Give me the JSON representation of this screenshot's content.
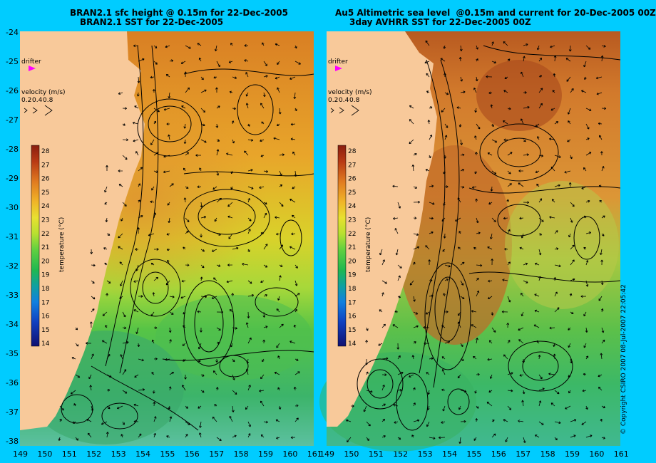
{
  "left_panel": {
    "title_line1": "BRAN2.1 sfc height @ 0.15m for 22-Dec-2005",
    "title_line2": "BRAN2.1 SST for 22-Dec-2005",
    "drifter_label": "drifter",
    "velocity_label": "velocity (m/s)",
    "velocity_scale": [
      "0.2",
      "0.4",
      "0.8"
    ],
    "colorbar_title": "temperature (°C)"
  },
  "right_panel": {
    "title_line1": "Au5 Altimetric sea level  @0.15m and current for 20-Dec-2005 00Z",
    "title_line2": "3day AVHRR SST for 22-Dec-2005 00Z",
    "drifter_label": "drifter",
    "velocity_label": "velocity (m/s)",
    "velocity_scale": [
      "0.2",
      "0.4",
      "0.8"
    ],
    "colorbar_title": "temperature (°C)"
  },
  "colorbar_ticks": [
    "28",
    "27",
    "26",
    "25",
    "24",
    "23",
    "22",
    "21",
    "20",
    "19",
    "18",
    "17",
    "16",
    "15",
    "14"
  ],
  "y_axis_labels": [
    "-24",
    "-25",
    "-26",
    "-27",
    "-28",
    "-29",
    "-30",
    "-31",
    "-32",
    "-33",
    "-34",
    "-35",
    "-36",
    "-37",
    "-38"
  ],
  "x_axis_labels_left": [
    "149",
    "150",
    "151",
    "152",
    "153",
    "154",
    "155",
    "156",
    "157",
    "158",
    "159",
    "160",
    "161"
  ],
  "x_axis_labels_right": [
    "149",
    "150",
    "151",
    "152",
    "153",
    "154",
    "155",
    "156",
    "157",
    "158",
    "159",
    "160",
    "161"
  ],
  "copyright": "© Copyright CSIRO 2007  08-Jul-2007 22:05:42",
  "colors": {
    "background": "#00ccff",
    "land": "#f8c99a",
    "drifter": "#ff00ff"
  }
}
